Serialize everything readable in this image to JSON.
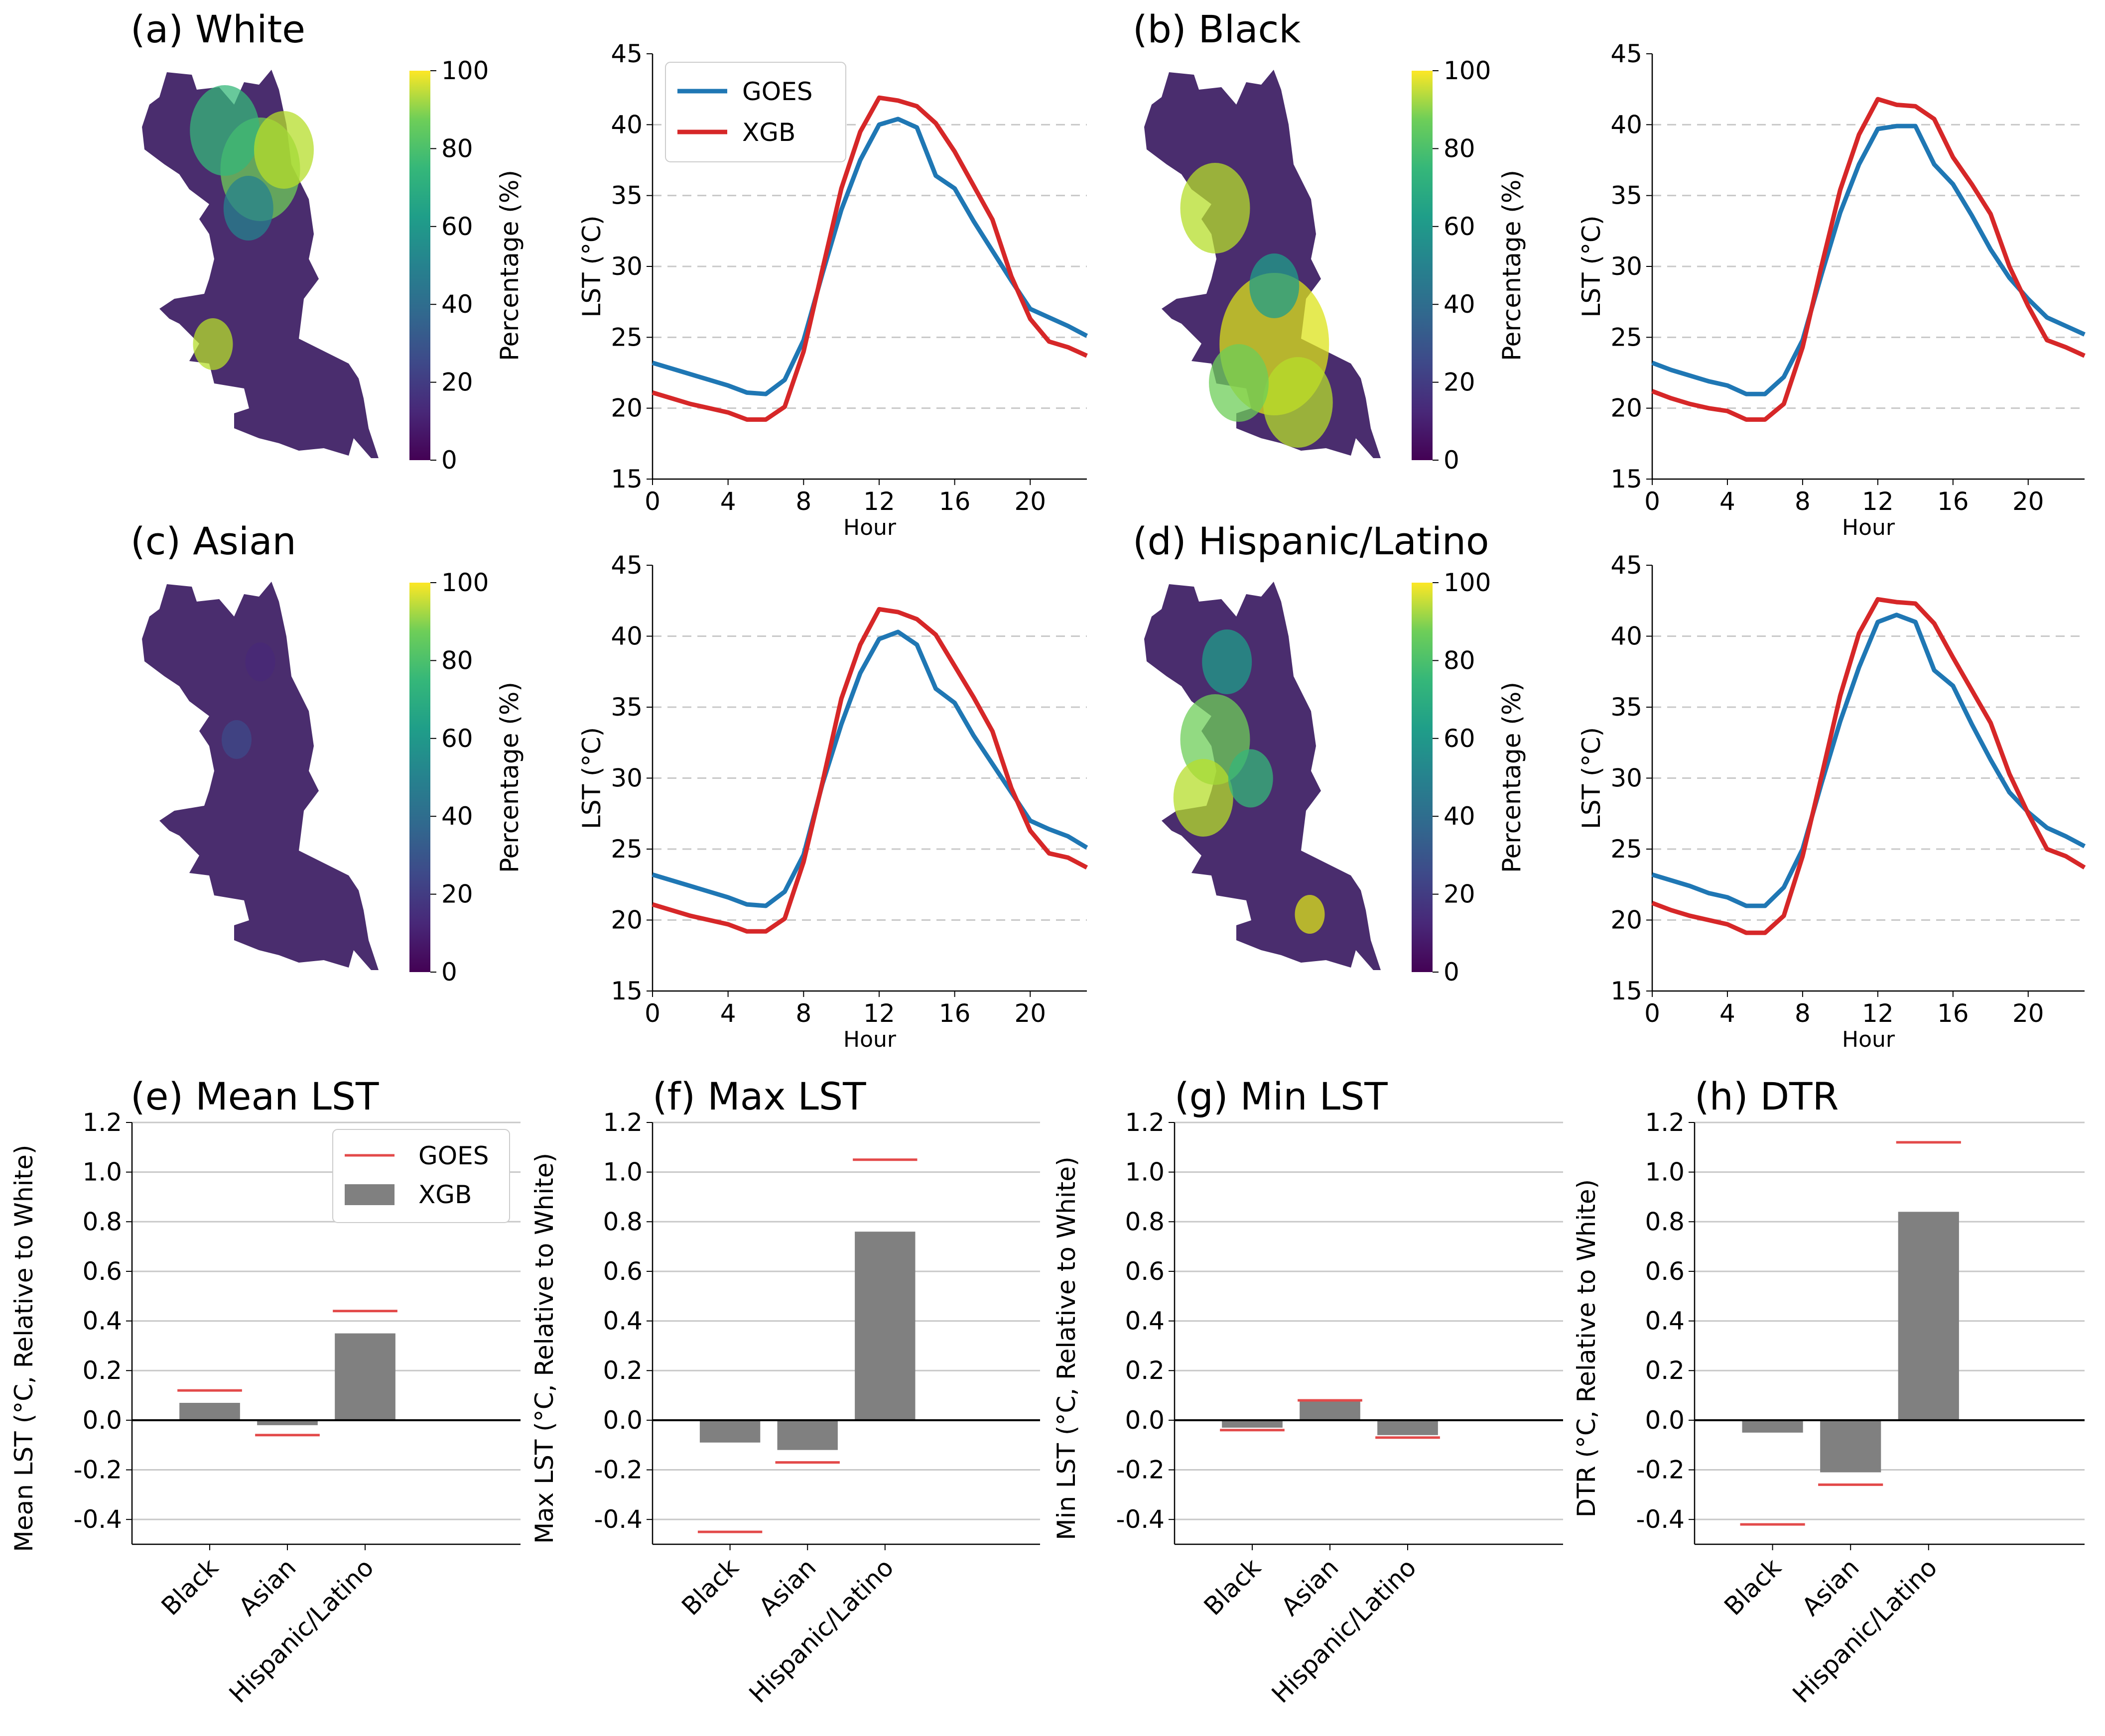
{
  "colors": {
    "goes": "#1f77b4",
    "xgb": "#d62728",
    "bar": "#808080",
    "goes_marker": "#e34a4a",
    "grid": "#c8c8c8"
  },
  "maps": [
    {
      "label": "(a) White",
      "cbar_label": "Percentage (%)",
      "ticks": [
        "0",
        "20",
        "40",
        "60",
        "80",
        "100"
      ]
    },
    {
      "label": "(b) Black",
      "cbar_label": "Percentage (%)",
      "ticks": [
        "0",
        "20",
        "40",
        "60",
        "80",
        "100"
      ]
    },
    {
      "label": "(c) Asian",
      "cbar_label": "Percentage (%)",
      "ticks": [
        "0",
        "20",
        "40",
        "60",
        "80",
        "100"
      ]
    },
    {
      "label": "(d) Hispanic/Latino",
      "cbar_label": "Percentage (%)",
      "ticks": [
        "0",
        "20",
        "40",
        "60",
        "80",
        "100"
      ]
    }
  ],
  "chart_data": [
    {
      "type": "line",
      "panel": "a",
      "x": [
        0,
        1,
        2,
        3,
        4,
        5,
        6,
        7,
        8,
        9,
        10,
        11,
        12,
        13,
        14,
        15,
        16,
        17,
        18,
        19,
        20,
        21,
        22,
        23
      ],
      "series": [
        {
          "name": "GOES",
          "values": [
            23.2,
            22.8,
            22.4,
            22.0,
            21.6,
            21.1,
            21.0,
            22.0,
            24.8,
            29.5,
            34.0,
            37.5,
            40.0,
            40.4,
            39.8,
            36.4,
            35.5,
            33.2,
            31.1,
            29.0,
            27.0,
            26.4,
            25.8,
            25.1
          ]
        },
        {
          "name": "XGB",
          "values": [
            21.1,
            20.7,
            20.3,
            20.0,
            19.7,
            19.2,
            19.2,
            20.1,
            24.0,
            29.8,
            35.5,
            39.5,
            41.9,
            41.7,
            41.3,
            40.1,
            38.1,
            35.7,
            33.3,
            29.3,
            26.3,
            24.7,
            24.3,
            23.7
          ]
        }
      ],
      "xlabel": "Hour",
      "ylabel": "LST (°C)",
      "ylim": [
        15,
        45
      ],
      "xticks": [
        0,
        4,
        8,
        12,
        16,
        20
      ],
      "yticks": [
        15,
        20,
        25,
        30,
        35,
        40,
        45
      ],
      "gridlines": [
        20,
        25,
        30,
        35,
        40
      ],
      "legend": "top-left"
    },
    {
      "type": "line",
      "panel": "b",
      "x": [
        0,
        1,
        2,
        3,
        4,
        5,
        6,
        7,
        8,
        9,
        10,
        11,
        12,
        13,
        14,
        15,
        16,
        17,
        18,
        19,
        20,
        21,
        22,
        23
      ],
      "series": [
        {
          "name": "GOES",
          "values": [
            23.2,
            22.7,
            22.3,
            21.9,
            21.6,
            21.0,
            21.0,
            22.2,
            24.8,
            29.4,
            33.8,
            37.2,
            39.7,
            39.9,
            39.9,
            37.2,
            35.8,
            33.6,
            31.2,
            29.2,
            27.7,
            26.4,
            25.8,
            25.2
          ]
        },
        {
          "name": "XGB",
          "values": [
            21.2,
            20.7,
            20.3,
            20.0,
            19.8,
            19.2,
            19.2,
            20.3,
            24.3,
            30.0,
            35.4,
            39.3,
            41.8,
            41.4,
            41.3,
            40.4,
            37.7,
            35.8,
            33.7,
            30.0,
            27.2,
            24.8,
            24.3,
            23.7
          ]
        }
      ],
      "xlabel": "Hour",
      "ylabel": "LST (°C)",
      "ylim": [
        15,
        45
      ],
      "xticks": [
        0,
        4,
        8,
        12,
        16,
        20
      ],
      "yticks": [
        15,
        20,
        25,
        30,
        35,
        40,
        45
      ],
      "gridlines": [
        20,
        25,
        30,
        35,
        40
      ]
    },
    {
      "type": "line",
      "panel": "c",
      "x": [
        0,
        1,
        2,
        3,
        4,
        5,
        6,
        7,
        8,
        9,
        10,
        11,
        12,
        13,
        14,
        15,
        16,
        17,
        18,
        19,
        20,
        21,
        22,
        23
      ],
      "series": [
        {
          "name": "GOES",
          "values": [
            23.2,
            22.8,
            22.4,
            22.0,
            21.6,
            21.1,
            21.0,
            22.0,
            24.6,
            29.6,
            33.8,
            37.4,
            39.8,
            40.3,
            39.4,
            36.3,
            35.3,
            33.0,
            31.0,
            29.0,
            27.0,
            26.4,
            25.9,
            25.1
          ]
        },
        {
          "name": "XGB",
          "values": [
            21.1,
            20.7,
            20.3,
            20.0,
            19.7,
            19.2,
            19.2,
            20.1,
            24.1,
            29.7,
            35.6,
            39.4,
            41.9,
            41.7,
            41.2,
            40.1,
            37.9,
            35.7,
            33.3,
            29.3,
            26.3,
            24.7,
            24.4,
            23.7
          ]
        }
      ],
      "xlabel": "Hour",
      "ylabel": "LST (°C)",
      "ylim": [
        15,
        45
      ],
      "xticks": [
        0,
        4,
        8,
        12,
        16,
        20
      ],
      "yticks": [
        15,
        20,
        25,
        30,
        35,
        40,
        45
      ],
      "gridlines": [
        20,
        25,
        30,
        35,
        40
      ]
    },
    {
      "type": "line",
      "panel": "d",
      "x": [
        0,
        1,
        2,
        3,
        4,
        5,
        6,
        7,
        8,
        9,
        10,
        11,
        12,
        13,
        14,
        15,
        16,
        17,
        18,
        19,
        20,
        21,
        22,
        23
      ],
      "series": [
        {
          "name": "GOES",
          "values": [
            23.2,
            22.8,
            22.4,
            21.9,
            21.6,
            21.0,
            21.0,
            22.3,
            25.0,
            29.6,
            34.0,
            37.8,
            41.0,
            41.5,
            41.0,
            37.6,
            36.5,
            33.8,
            31.3,
            29.0,
            27.6,
            26.5,
            25.9,
            25.2
          ]
        },
        {
          "name": "XGB",
          "values": [
            21.2,
            20.7,
            20.3,
            20.0,
            19.7,
            19.1,
            19.1,
            20.3,
            24.5,
            30.1,
            35.8,
            40.2,
            42.6,
            42.4,
            42.3,
            40.9,
            38.5,
            36.2,
            33.9,
            30.3,
            27.5,
            25.0,
            24.5,
            23.7
          ]
        }
      ],
      "xlabel": "Hour",
      "ylabel": "LST (°C)",
      "ylim": [
        15,
        45
      ],
      "xticks": [
        0,
        4,
        8,
        12,
        16,
        20
      ],
      "yticks": [
        15,
        20,
        25,
        30,
        35,
        40,
        45
      ],
      "gridlines": [
        20,
        25,
        30,
        35,
        40
      ]
    },
    {
      "type": "bar",
      "panel": "e",
      "title": "(e) Mean LST",
      "categories": [
        "Black",
        "Asian",
        "Hispanic/Latino"
      ],
      "series": [
        {
          "name": "XGB",
          "values": [
            0.07,
            -0.02,
            0.35
          ]
        },
        {
          "name": "GOES",
          "values": [
            0.12,
            -0.06,
            0.44
          ]
        }
      ],
      "ylabel": "Mean LST (°C, Relative to White)",
      "ylim": [
        -0.5,
        1.2
      ],
      "yticks": [
        "-0.4",
        "-0.2",
        "0.0",
        "0.2",
        "0.4",
        "0.6",
        "0.8",
        "1.0",
        "1.2"
      ],
      "legend": "top-right"
    },
    {
      "type": "bar",
      "panel": "f",
      "title": "(f) Max LST",
      "categories": [
        "Black",
        "Asian",
        "Hispanic/Latino"
      ],
      "series": [
        {
          "name": "XGB",
          "values": [
            -0.09,
            -0.12,
            0.76
          ]
        },
        {
          "name": "GOES",
          "values": [
            -0.45,
            -0.17,
            1.05
          ]
        }
      ],
      "ylabel": "Max LST (°C, Relative to White)",
      "ylim": [
        -0.5,
        1.2
      ],
      "yticks": [
        "-0.4",
        "-0.2",
        "0.0",
        "0.2",
        "0.4",
        "0.6",
        "0.8",
        "1.0",
        "1.2"
      ]
    },
    {
      "type": "bar",
      "panel": "g",
      "title": "(g) Min LST",
      "categories": [
        "Black",
        "Asian",
        "Hispanic/Latino"
      ],
      "series": [
        {
          "name": "XGB",
          "values": [
            -0.03,
            0.08,
            -0.06
          ]
        },
        {
          "name": "GOES",
          "values": [
            -0.04,
            0.08,
            -0.07
          ]
        }
      ],
      "ylabel": "Min LST (°C, Relative to White)",
      "ylim": [
        -0.5,
        1.2
      ],
      "yticks": [
        "-0.4",
        "-0.2",
        "0.0",
        "0.2",
        "0.4",
        "0.6",
        "0.8",
        "1.0",
        "1.2"
      ]
    },
    {
      "type": "bar",
      "panel": "h",
      "title": "(h)  DTR",
      "categories": [
        "Black",
        "Asian",
        "Hispanic/Latino"
      ],
      "series": [
        {
          "name": "XGB",
          "values": [
            -0.05,
            -0.21,
            0.84
          ]
        },
        {
          "name": "GOES",
          "values": [
            -0.42,
            -0.26,
            1.12
          ]
        }
      ],
      "ylabel": "DTR (°C, Relative to White)",
      "ylim": [
        -0.5,
        1.2
      ],
      "yticks": [
        "-0.4",
        "-0.2",
        "0.0",
        "0.2",
        "0.4",
        "0.6",
        "0.8",
        "1.0",
        "1.2"
      ]
    }
  ]
}
